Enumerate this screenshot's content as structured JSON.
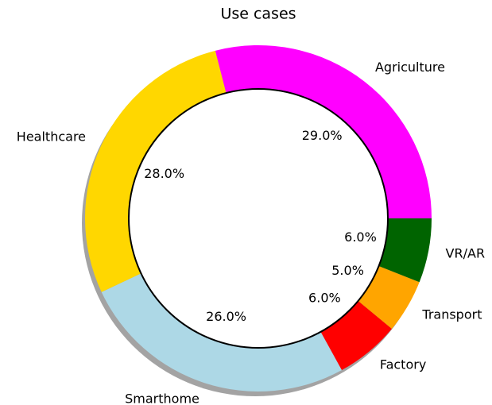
{
  "chart_data": {
    "type": "donut",
    "title": "Use cases",
    "categories": [
      "Agriculture",
      "Healthcare",
      "Smarthome",
      "Factory",
      "Transport",
      "VR/AR"
    ],
    "values": [
      29,
      28,
      26,
      6,
      5,
      6
    ],
    "value_labels": [
      "29.0%",
      "28.0%",
      "26.0%",
      "6.0%",
      "5.0%",
      "6.0%"
    ],
    "colors": [
      "#ff00ff",
      "#ffd700",
      "#add8e6",
      "#ff0000",
      "#ffa500",
      "#006400"
    ]
  }
}
